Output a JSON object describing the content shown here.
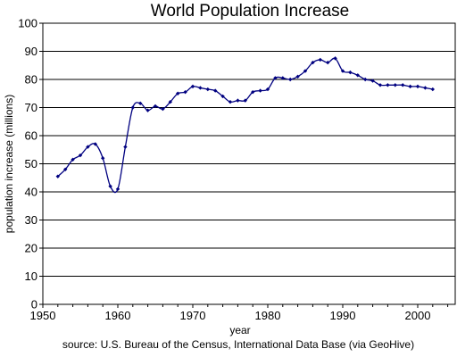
{
  "chart_data": {
    "type": "line",
    "title": "World Population Increase",
    "xlabel": "year",
    "ylabel": "population increase (millions)",
    "source": "source: U.S. Bureau of the Census, International Data Base (via GeoHive)",
    "xlim": [
      1950,
      2005
    ],
    "ylim": [
      0,
      100
    ],
    "x_ticks": [
      1950,
      1960,
      1970,
      1980,
      1990,
      2000
    ],
    "y_ticks": [
      0,
      10,
      20,
      30,
      40,
      50,
      60,
      70,
      80,
      90,
      100
    ],
    "grid": "horizontal",
    "series": [
      {
        "color": "#000080",
        "x": [
          1952,
          1953,
          1954,
          1955,
          1956,
          1957,
          1958,
          1959,
          1960,
          1961,
          1962,
          1963,
          1964,
          1965,
          1966,
          1967,
          1968,
          1969,
          1970,
          1971,
          1972,
          1973,
          1974,
          1975,
          1976,
          1977,
          1978,
          1979,
          1980,
          1981,
          1982,
          1983,
          1984,
          1985,
          1986,
          1987,
          1988,
          1989,
          1990,
          1991,
          1992,
          1993,
          1994,
          1995,
          1996,
          1997,
          1998,
          1999,
          2000,
          2001,
          2002
        ],
        "values": [
          45.5,
          48,
          51.5,
          53,
          56,
          57,
          52,
          42,
          41,
          56,
          70,
          71.5,
          69,
          70.5,
          69.5,
          72,
          75,
          75.5,
          77.5,
          77,
          76.5,
          76,
          74,
          72,
          72.5,
          72.5,
          75.5,
          76,
          76.5,
          80.5,
          80.5,
          80,
          81,
          83,
          86,
          87,
          86,
          87.5,
          83,
          82.5,
          81.5,
          80,
          79.5,
          78,
          78,
          78,
          78,
          77.5,
          77.5,
          77,
          76.5
        ]
      }
    ]
  }
}
